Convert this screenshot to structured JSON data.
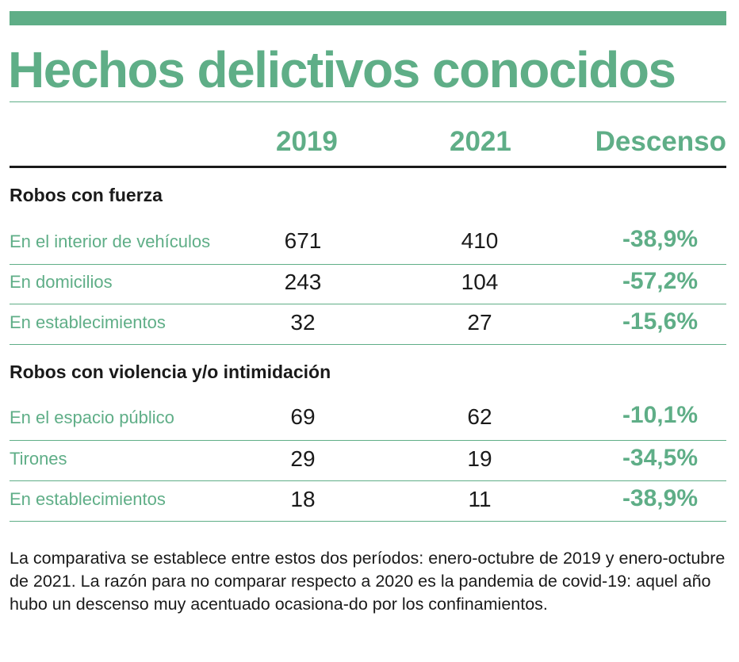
{
  "title": "Hechos delictivos conocidos",
  "colors": {
    "accent": "#5fae87",
    "text": "#1a1a1a"
  },
  "chart_data": {
    "type": "table",
    "title": "Hechos delictivos conocidos",
    "columns": [
      "2019",
      "2021",
      "Descenso"
    ],
    "sections": [
      {
        "title": "Robos con fuerza",
        "rows": [
          {
            "label": "En el interior de vehículos",
            "y2019": "671",
            "y2021": "410",
            "descenso": "-38,9%"
          },
          {
            "label": "En domicilios",
            "y2019": "243",
            "y2021": "104",
            "descenso": "-57,2%"
          },
          {
            "label": "En establecimientos",
            "y2019": "32",
            "y2021": "27",
            "descenso": "-15,6%"
          }
        ]
      },
      {
        "title": "Robos con violencia y/o intimidación",
        "rows": [
          {
            "label": "En el espacio público",
            "y2019": "69",
            "y2021": "62",
            "descenso": "-10,1%"
          },
          {
            "label": "Tirones",
            "y2019": "29",
            "y2021": "19",
            "descenso": "-34,5%"
          },
          {
            "label": "En establecimientos",
            "y2019": "18",
            "y2021": "11",
            "descenso": "-38,9%"
          }
        ]
      }
    ]
  },
  "note": "La comparativa se establece entre estos dos períodos: enero-octubre de 2019 y enero-octubre de 2021. La razón para no comparar respecto a 2020 es la pandemia de covid-19: aquel año hubo un descenso muy acentuado ocasiona-do por los confinamientos."
}
